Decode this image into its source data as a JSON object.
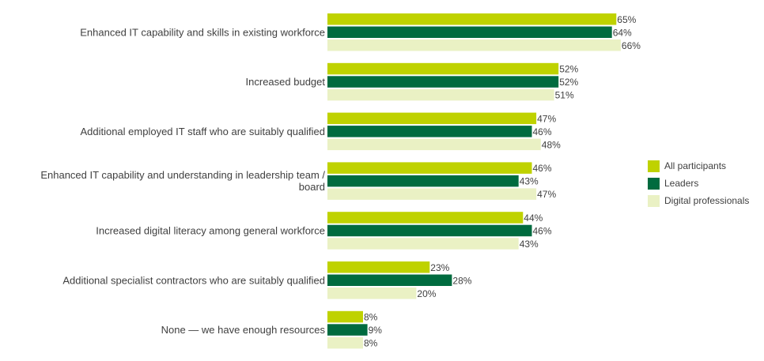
{
  "chart_data": {
    "type": "bar",
    "orientation": "horizontal",
    "categories": [
      [
        "Enhanced IT capability and skills in existing workforce"
      ],
      [
        "Increased budget"
      ],
      [
        "Additional employed IT staff who are suitably qualified"
      ],
      [
        "Enhanced IT capability and understanding in leadership team /",
        "board"
      ],
      [
        "Increased digital literacy among general workforce"
      ],
      [
        "Additional specialist contractors who are suitably qualified"
      ],
      [
        "None — we have enough resources"
      ]
    ],
    "series": [
      {
        "name": "All participants",
        "color": "#bfd200",
        "values": [
          65,
          52,
          47,
          46,
          44,
          23,
          8
        ]
      },
      {
        "name": "Leaders",
        "color": "#006b3f",
        "values": [
          64,
          52,
          46,
          43,
          46,
          28,
          9
        ]
      },
      {
        "name": "Digital professionals",
        "color": "#eaf1c4",
        "values": [
          66,
          51,
          48,
          47,
          43,
          20,
          8
        ]
      }
    ],
    "value_suffix": "%",
    "xlim": [
      0,
      100
    ],
    "grid": false,
    "legend_position": "right"
  }
}
